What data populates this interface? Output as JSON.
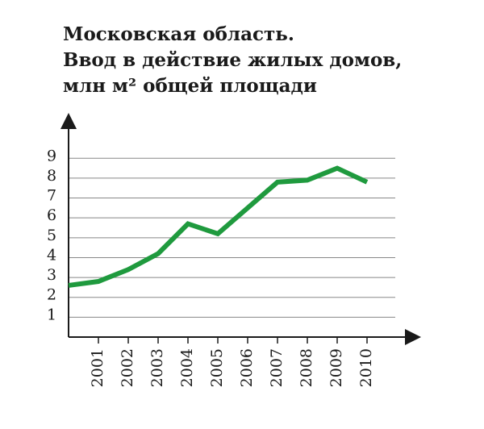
{
  "chart_data": {
    "type": "line",
    "title": [
      "Московская область.",
      "Ввод в действие жилых домов,",
      "млн м² общей площади"
    ],
    "categories": [
      null,
      "2001",
      "2002",
      "2003",
      "2004",
      "2005",
      "2006",
      "2007",
      "2008",
      "2009",
      "2010"
    ],
    "series": [
      {
        "color": "#1f9a3e",
        "values": [
          2.6,
          2.8,
          3.4,
          4.2,
          5.7,
          5.2,
          6.5,
          7.8,
          7.9,
          8.5,
          7.8
        ]
      }
    ],
    "ylim": [
      0,
      11
    ],
    "yticks": [
      1,
      2,
      3,
      4,
      5,
      6,
      7,
      8,
      9
    ],
    "grid": true
  }
}
